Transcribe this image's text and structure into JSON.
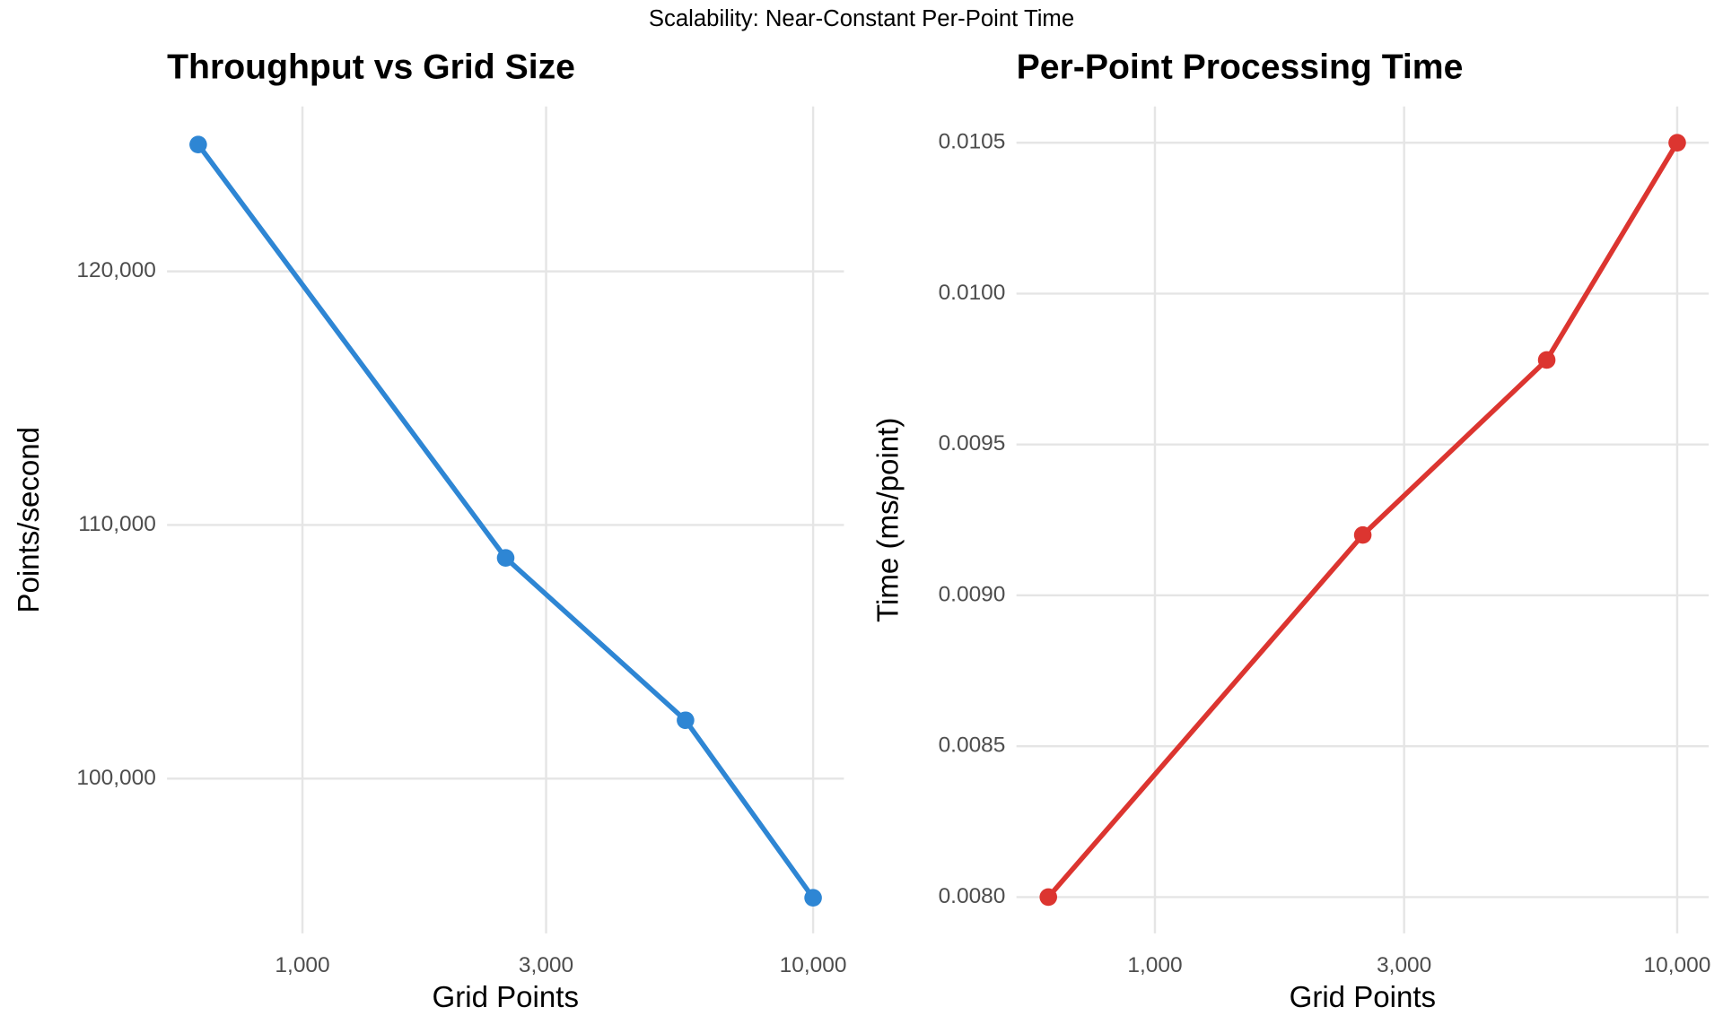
{
  "suptitle": "Scalability: Near-Constant Per-Point Time",
  "chart_data": [
    {
      "type": "line",
      "title": "Throughput vs Grid Size",
      "xlabel": "Grid Points",
      "ylabel": "Points/second",
      "x": [
        625,
        2500,
        5625,
        10000
      ],
      "series": [
        {
          "name": "Throughput",
          "color": "#2e86d4",
          "values": [
            125000,
            108700,
            102300,
            95300
          ]
        }
      ],
      "xscale": "log",
      "xlim": [
        543,
        11490
      ],
      "xticks": [
        {
          "value": 1000,
          "label": "1,000"
        },
        {
          "value": 3000,
          "label": "3,000"
        },
        {
          "value": 10000,
          "label": "10,000"
        }
      ],
      "ylim": [
        93900,
        126500
      ],
      "yticks": [
        {
          "value": 100000,
          "label": "100,000"
        },
        {
          "value": 110000,
          "label": "110,000"
        },
        {
          "value": 120000,
          "label": "120,000"
        }
      ],
      "grid": true
    },
    {
      "type": "line",
      "title": "Per-Point Processing Time",
      "xlabel": "Grid Points",
      "ylabel": "Time (ms/point)",
      "x": [
        625,
        2500,
        5625,
        10000
      ],
      "series": [
        {
          "name": "Time",
          "color": "#dc3530",
          "values": [
            0.008,
            0.0092,
            0.00978,
            0.0105
          ]
        }
      ],
      "xscale": "log",
      "xlim": [
        543,
        11490
      ],
      "xticks": [
        {
          "value": 1000,
          "label": "1,000"
        },
        {
          "value": 3000,
          "label": "3,000"
        },
        {
          "value": 10000,
          "label": "10,000"
        }
      ],
      "ylim": [
        0.00788,
        0.01062
      ],
      "yticks": [
        {
          "value": 0.008,
          "label": "0.0080"
        },
        0.0085,
        {
          "value": 0.009,
          "label": "0.0090"
        },
        0.0095,
        {
          "value": 0.01,
          "label": "0.0100"
        },
        0.0105
      ],
      "grid": true
    }
  ]
}
